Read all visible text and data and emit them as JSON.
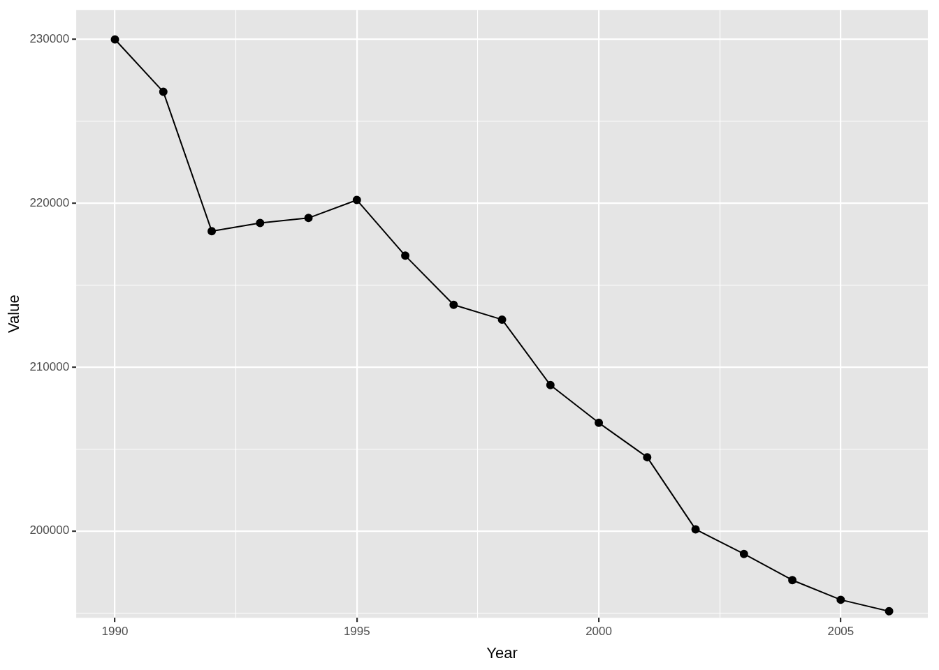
{
  "chart_data": {
    "type": "line",
    "xlabel": "Year",
    "ylabel": "Value",
    "x": [
      1990,
      1991,
      1992,
      1993,
      1994,
      1995,
      1996,
      1997,
      1998,
      1999,
      2000,
      2001,
      2002,
      2003,
      2004,
      2005,
      2006
    ],
    "series": [
      {
        "color": "#000000",
        "values": [
          230000,
          226800,
          218300,
          218800,
          219100,
          220200,
          216800,
          213800,
          212900,
          208900,
          206600,
          204500,
          200100,
          198600,
          197000,
          195800,
          195100
        ]
      }
    ],
    "xlim": [
      1989.2,
      2006.8
    ],
    "xticks": [
      1990,
      {
        "value": 1992.5,
        "label": null
      },
      1995,
      {
        "value": 1997.5,
        "label": null
      },
      2000,
      {
        "value": 2002.5,
        "label": null
      },
      2005
    ],
    "ylim": [
      194700,
      231800
    ],
    "yticks": [
      {
        "value": 195000,
        "label": null
      },
      200000,
      {
        "value": 205000,
        "label": null
      },
      210000,
      {
        "value": 215000,
        "label": null
      },
      220000,
      {
        "value": 225000,
        "label": null
      },
      230000
    ],
    "grid": true,
    "legend": false,
    "marker": "circle",
    "line_style": "solid"
  }
}
